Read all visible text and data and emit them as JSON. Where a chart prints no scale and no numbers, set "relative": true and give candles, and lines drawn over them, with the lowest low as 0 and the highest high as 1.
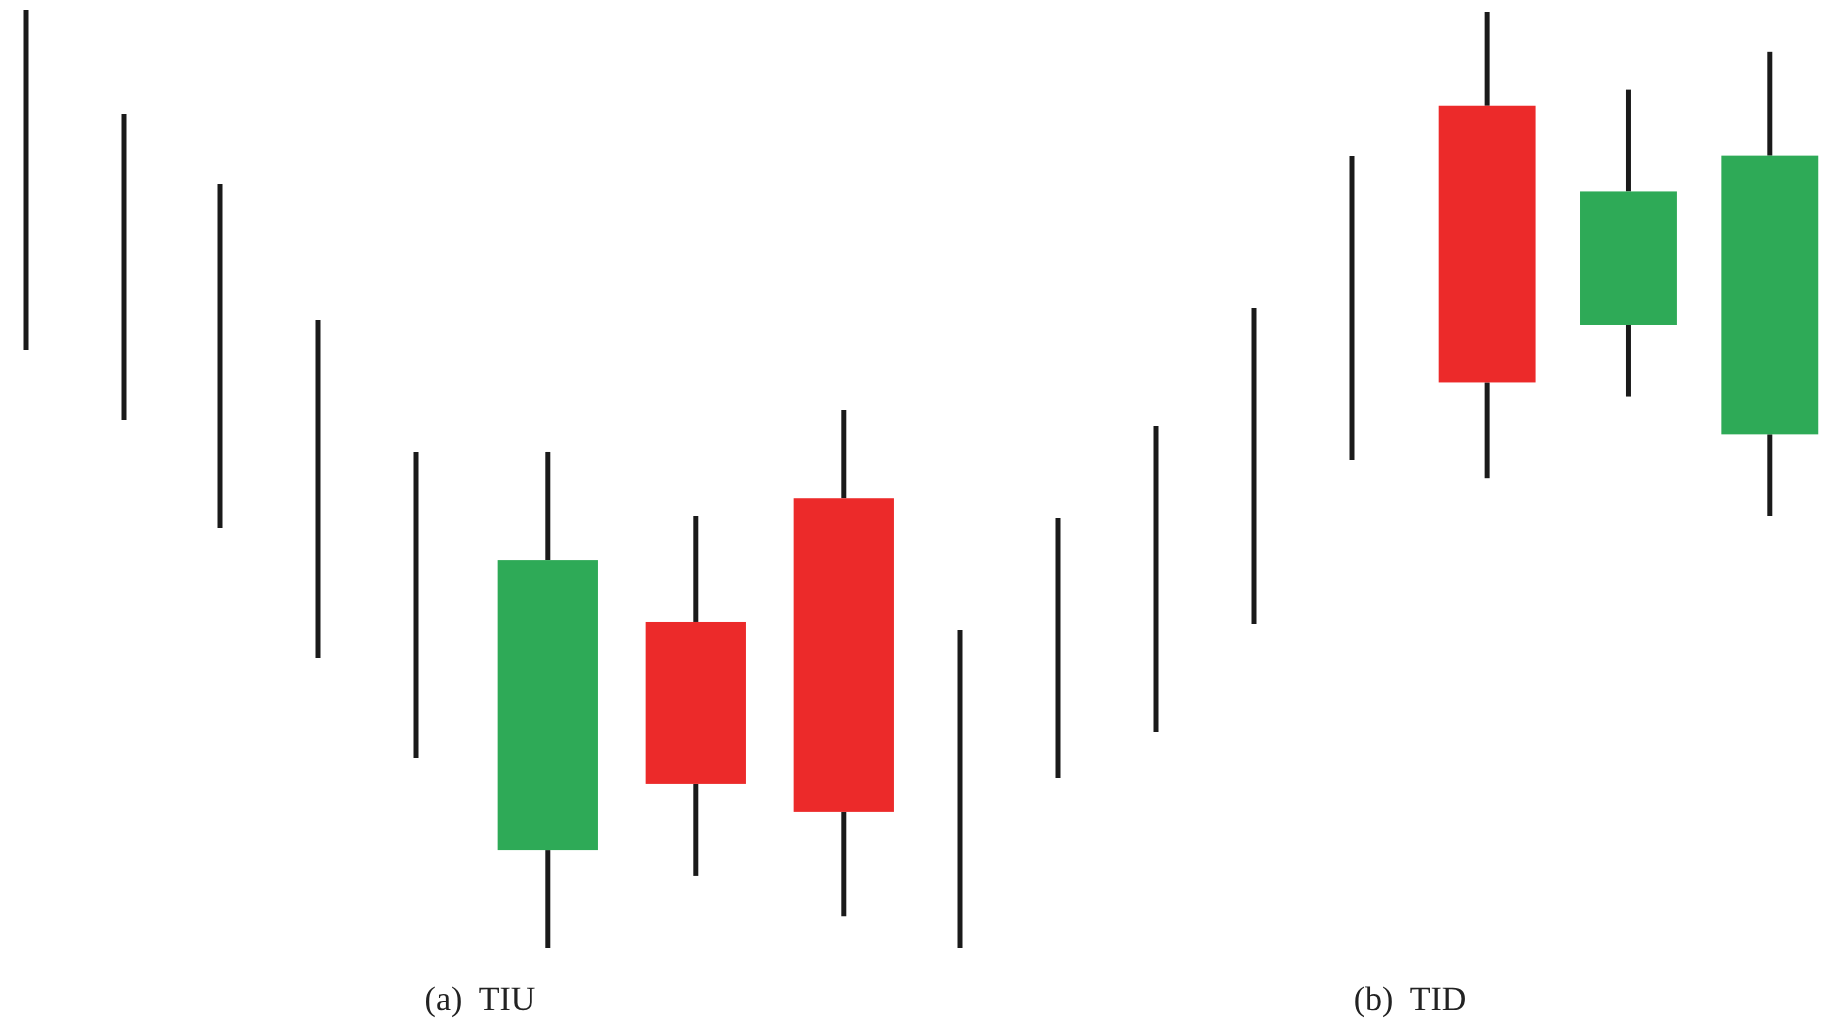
{
  "chart_data": [
    {
      "type": "candlestick",
      "xlabel": "(a)  TIU",
      "relative": true,
      "tick_labels": false,
      "categories": [
        null,
        null,
        null
      ],
      "ohlc": [
        [
          0.182,
          0.922,
          0.0,
          0.721
        ],
        [
          0.606,
          0.803,
          0.134,
          0.305
        ],
        [
          0.836,
          1.0,
          0.059,
          0.253
        ]
      ],
      "colors": [
        "#2eaa57",
        "#ec2a2a",
        "#ec2a2a"
      ]
    },
    {
      "type": "candlestick",
      "xlabel": "(b)  TID",
      "relative": true,
      "tick_labels": false,
      "categories": [
        null,
        null,
        null
      ],
      "ohlc": [
        [
          0.814,
          1.0,
          0.075,
          0.265
        ],
        [
          0.379,
          0.846,
          0.237,
          0.644
        ],
        [
          0.162,
          0.921,
          0.0,
          0.715
        ]
      ],
      "colors": [
        "#ec2a2a",
        "#2eaa57",
        "#2eaa57"
      ]
    }
  ]
}
